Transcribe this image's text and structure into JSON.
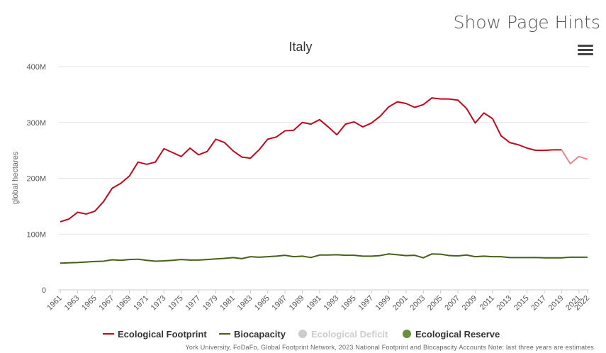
{
  "page_hint": "Show Page Hints",
  "menu_icon": "hamburger-menu-icon",
  "colors": {
    "footprint": "#c0091c",
    "footprint_estimate": "#e38790",
    "biocapacity": "#46601a",
    "deficit": "#cccccc",
    "reserve": "#6b8e3b",
    "grid": "#e6e6e6",
    "axis_text": "#555555"
  },
  "legend": [
    {
      "label": "Ecological Footprint",
      "symbol": "line",
      "color": "#c0091c",
      "enabled": true
    },
    {
      "label": "Biocapacity",
      "symbol": "line",
      "color": "#46601a",
      "enabled": true
    },
    {
      "label": "Ecological Deficit",
      "symbol": "dot",
      "color": "#cccccc",
      "enabled": false
    },
    {
      "label": "Ecological Reserve",
      "symbol": "dot",
      "color": "#6b8e3b",
      "enabled": true
    }
  ],
  "credits": "York University, FoDaFo, Global Footprint Network, 2023 National Footprint and Biocapacity Accounts Note: last three years are estimates",
  "chart_data": {
    "type": "line",
    "title": "Italy",
    "ylabel": "global hectares",
    "xlabel": "",
    "ylim": [
      0,
      400000000
    ],
    "y_ticks": [
      0,
      100000000,
      200000000,
      300000000,
      400000000
    ],
    "y_tick_labels": [
      "0",
      "100M",
      "200M",
      "300M",
      "400M"
    ],
    "x_tick_labels": [
      "1961",
      "1963",
      "1965",
      "1967",
      "1969",
      "1971",
      "1973",
      "1975",
      "1977",
      "1979",
      "1981",
      "1983",
      "1985",
      "1987",
      "1989",
      "1991",
      "1993",
      "1995",
      "1997",
      "1999",
      "2001",
      "2003",
      "2005",
      "2007",
      "2009",
      "2011",
      "2013",
      "2015",
      "2017",
      "2019",
      "2021",
      "2022"
    ],
    "grid": true,
    "legend_position": "bottom",
    "x": [
      1961,
      1962,
      1963,
      1964,
      1965,
      1966,
      1967,
      1968,
      1969,
      1970,
      1971,
      1972,
      1973,
      1974,
      1975,
      1976,
      1977,
      1978,
      1979,
      1980,
      1981,
      1982,
      1983,
      1984,
      1985,
      1986,
      1987,
      1988,
      1989,
      1990,
      1991,
      1992,
      1993,
      1994,
      1995,
      1996,
      1997,
      1998,
      1999,
      2000,
      2001,
      2002,
      2003,
      2004,
      2005,
      2006,
      2007,
      2008,
      2009,
      2010,
      2011,
      2012,
      2013,
      2014,
      2015,
      2016,
      2017,
      2018,
      2019,
      2020,
      2021,
      2022
    ],
    "estimate_from": 2019,
    "series": [
      {
        "name": "Ecological Footprint",
        "color": "#c0091c",
        "values": [
          122000000,
          127000000,
          139000000,
          136000000,
          141000000,
          158000000,
          182000000,
          191000000,
          204000000,
          229000000,
          225000000,
          229000000,
          253000000,
          246000000,
          239000000,
          254000000,
          242000000,
          248000000,
          270000000,
          264000000,
          249000000,
          238000000,
          236000000,
          251000000,
          270000000,
          274000000,
          285000000,
          286000000,
          300000000,
          297000000,
          305000000,
          292000000,
          278000000,
          297000000,
          301000000,
          292000000,
          299000000,
          311000000,
          328000000,
          337000000,
          334000000,
          327000000,
          332000000,
          344000000,
          342000000,
          342000000,
          340000000,
          325000000,
          299000000,
          317000000,
          307000000,
          276000000,
          264000000,
          260000000,
          254000000,
          250000000,
          250000000,
          251000000,
          251000000,
          226000000,
          239000000,
          234000000
        ]
      },
      {
        "name": "Biocapacity",
        "color": "#46601a",
        "values": [
          48000000,
          48500000,
          49000000,
          50000000,
          51000000,
          51500000,
          54000000,
          53000000,
          54500000,
          55000000,
          53000000,
          51500000,
          52000000,
          53000000,
          54500000,
          53500000,
          53500000,
          54500000,
          55500000,
          56500000,
          58000000,
          56000000,
          59500000,
          58500000,
          59500000,
          60500000,
          62000000,
          59500000,
          60500000,
          58000000,
          62500000,
          62500000,
          63000000,
          62000000,
          62000000,
          60500000,
          60500000,
          61500000,
          64500000,
          63000000,
          61500000,
          62000000,
          57500000,
          64500000,
          64000000,
          61500000,
          61000000,
          62500000,
          59500000,
          60500000,
          59500000,
          59500000,
          58000000,
          58000000,
          58000000,
          58000000,
          57500000,
          57500000,
          57500000,
          58500000,
          58500000,
          58500000
        ]
      }
    ]
  }
}
